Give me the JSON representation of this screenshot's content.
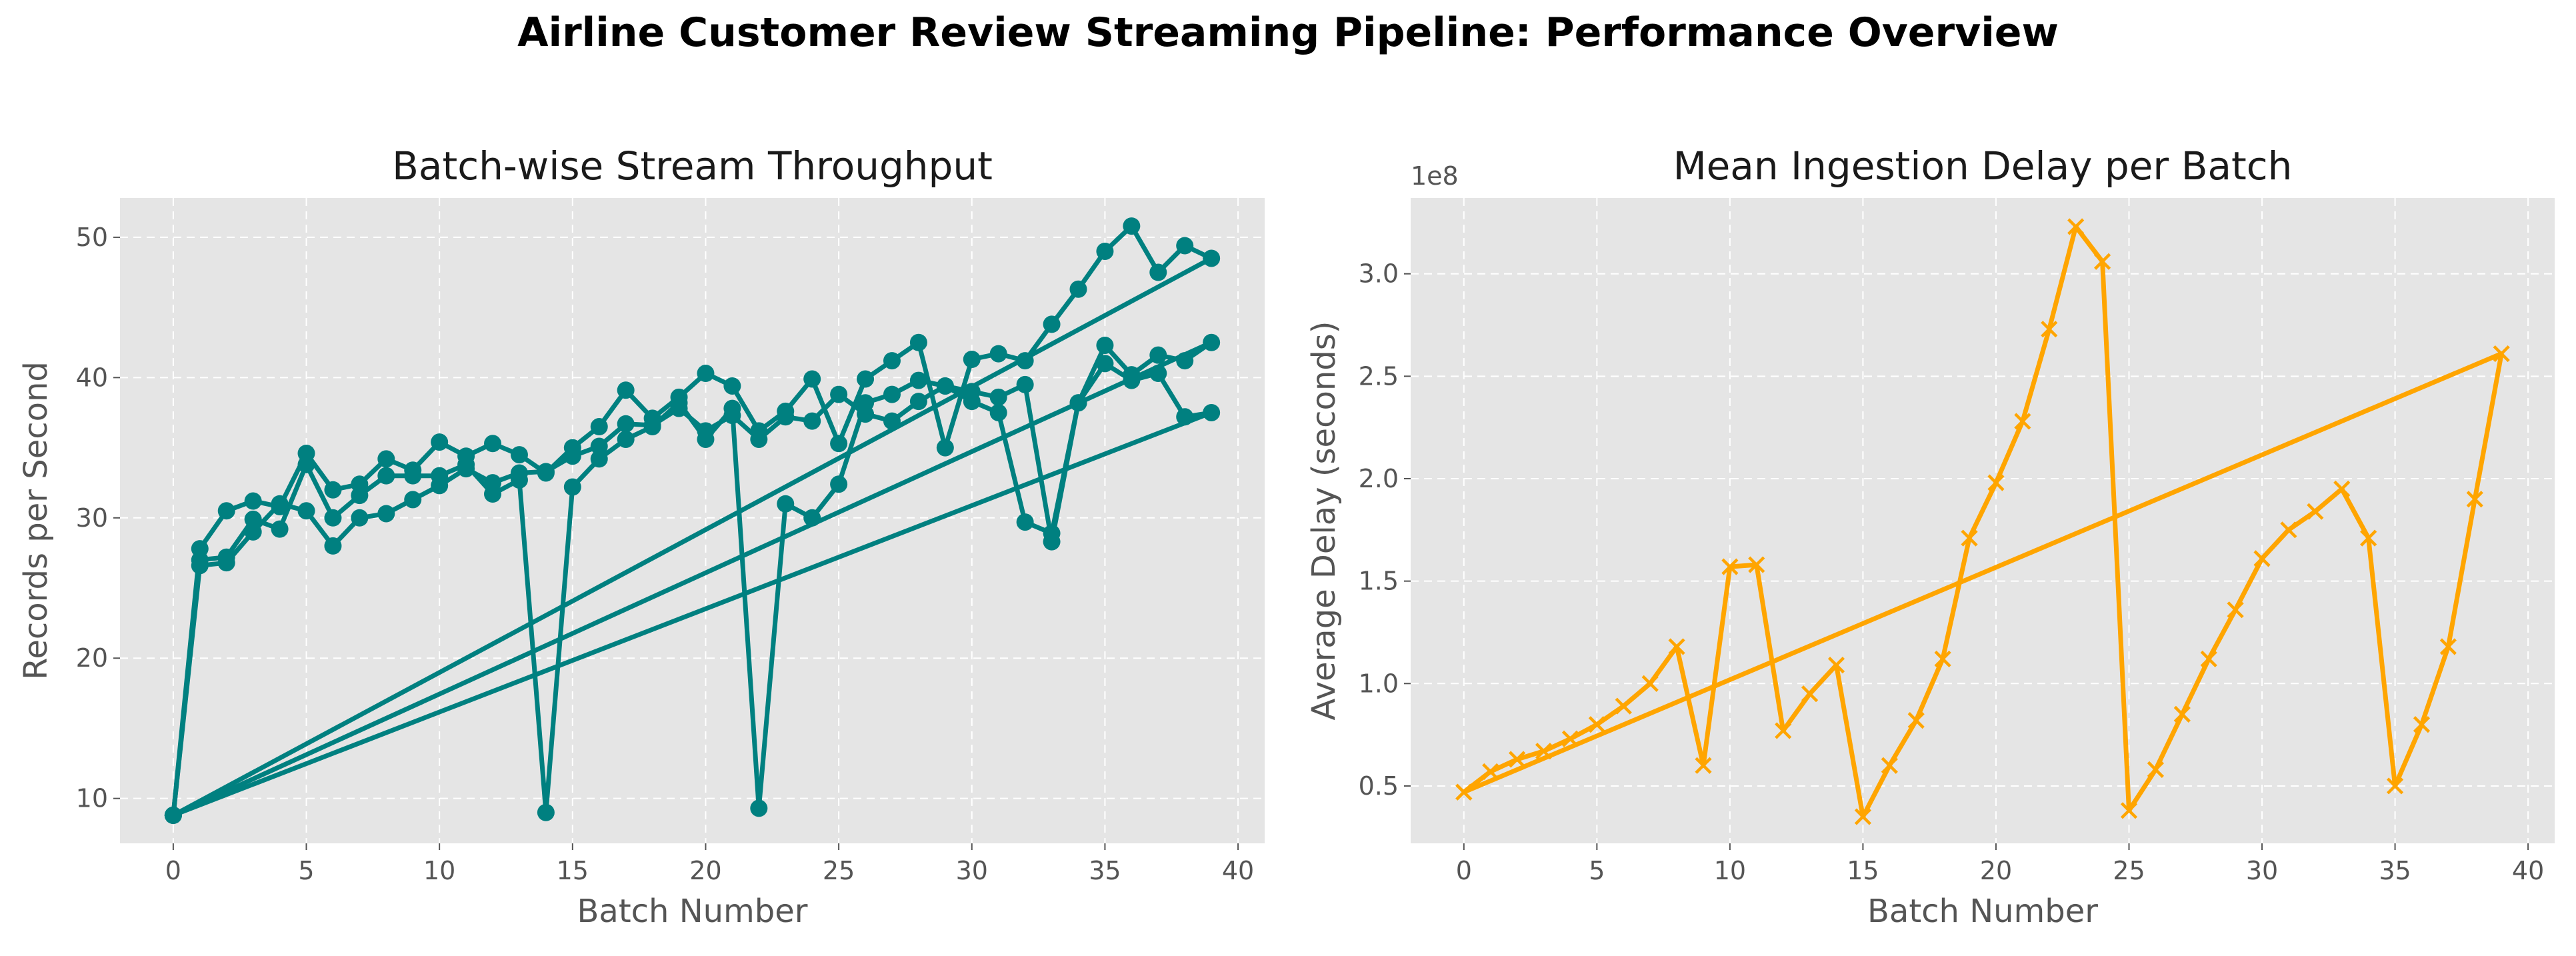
{
  "figure": {
    "suptitle": "Airline Customer Review Streaming Pipeline: Performance Overview"
  },
  "chart_data": [
    {
      "type": "line",
      "title": "Batch-wise Stream Throughput",
      "xlabel": "Batch Number",
      "ylabel": "Records per Second",
      "xlim": [
        -2,
        41
      ],
      "ylim": [
        6.8,
        52.8
      ],
      "xticks": [
        0,
        5,
        10,
        15,
        20,
        25,
        30,
        35,
        40
      ],
      "yticks": [
        10,
        20,
        30,
        40,
        50
      ],
      "grid": true,
      "marker": "circle",
      "color": "#008080",
      "series": [
        {
          "x": [
            0,
            1,
            2,
            3,
            4,
            5,
            6,
            7,
            8,
            9,
            10,
            11,
            12,
            13,
            14,
            15,
            16,
            17,
            18,
            19,
            20,
            21,
            22,
            23,
            24,
            25,
            26,
            27,
            28,
            29,
            30,
            31,
            32,
            33,
            34,
            35,
            36,
            37,
            38,
            39,
            0
          ],
          "values": [
            8.8,
            27.8,
            30.5,
            31.2,
            30.8,
            34.6,
            32.0,
            32.4,
            34.2,
            33.4,
            35.4,
            34.4,
            35.3,
            34.5,
            33.2,
            35.0,
            36.5,
            39.1,
            37.1,
            38.6,
            40.3,
            39.4,
            36.2,
            37.6,
            39.9,
            35.3,
            39.9,
            41.2,
            42.5,
            35.0,
            41.3,
            41.7,
            41.2,
            43.8,
            46.3,
            49.0,
            50.8,
            47.5,
            49.4,
            48.5,
            8.8
          ]
        },
        {
          "x": [
            0,
            1,
            2,
            3,
            4,
            5,
            6,
            7,
            8,
            9,
            10,
            11,
            12,
            13,
            14,
            15,
            16,
            17,
            18,
            19,
            20,
            21,
            22,
            23,
            24,
            25,
            26,
            27,
            28,
            29,
            30,
            31,
            32,
            33,
            34,
            35,
            36,
            37,
            38,
            39,
            0
          ],
          "values": [
            8.8,
            27.0,
            27.2,
            29.9,
            29.2,
            33.8,
            30.0,
            31.6,
            33.0,
            33.0,
            33.0,
            33.8,
            31.7,
            32.7,
            9.0,
            32.2,
            34.2,
            35.6,
            36.5,
            38.2,
            35.6,
            37.8,
            9.3,
            31.0,
            30.0,
            32.4,
            38.2,
            38.8,
            39.8,
            39.4,
            38.3,
            37.5,
            29.7,
            28.9,
            38.2,
            41.0,
            39.8,
            40.3,
            37.2,
            37.5,
            8.8
          ]
        },
        {
          "x": [
            0,
            1,
            2,
            3,
            4,
            5,
            6,
            7,
            8,
            9,
            10,
            11,
            12,
            13,
            14,
            15,
            16,
            17,
            18,
            19,
            20,
            21,
            22,
            23,
            24,
            25,
            26,
            27,
            28,
            29,
            30,
            31,
            32,
            33,
            34,
            35,
            36,
            37,
            38,
            39,
            0
          ],
          "values": [
            8.8,
            26.6,
            26.8,
            29.0,
            31.0,
            30.5,
            28.0,
            30.0,
            30.3,
            31.3,
            32.3,
            33.5,
            32.5,
            33.2,
            33.3,
            34.4,
            35.1,
            36.7,
            36.6,
            37.8,
            36.2,
            37.3,
            35.6,
            37.2,
            36.9,
            38.8,
            37.4,
            36.9,
            38.3,
            39.4,
            39.0,
            38.6,
            39.5,
            28.3,
            38.2,
            42.3,
            40.2,
            41.6,
            41.2,
            42.5,
            8.8
          ]
        }
      ]
    },
    {
      "type": "line",
      "title": "Mean Ingestion Delay per Batch",
      "xlabel": "Batch Number",
      "ylabel": "Average Delay (seconds)",
      "y_offset_label": "1e8",
      "xlim": [
        -2,
        41
      ],
      "ylim": [
        0.22,
        3.37
      ],
      "xticks": [
        0,
        5,
        10,
        15,
        20,
        25,
        30,
        35,
        40
      ],
      "ytick_labels": [
        "0.5",
        "1.0",
        "1.5",
        "2.0",
        "2.5",
        "3.0"
      ],
      "grid": true,
      "marker": "x",
      "color": "#FFA500",
      "series": [
        {
          "x": [
            0,
            1,
            2,
            3,
            4,
            5,
            6,
            7,
            8,
            9,
            10,
            11,
            12,
            13,
            14,
            15,
            16,
            17,
            18,
            19,
            20,
            21,
            22,
            23,
            24,
            25,
            26,
            27,
            28,
            29,
            30,
            31,
            32,
            33,
            34,
            35,
            36,
            37,
            38,
            39,
            0
          ],
          "values": [
            0.47,
            0.57,
            0.63,
            0.67,
            0.73,
            0.8,
            0.89,
            1.0,
            1.18,
            0.6,
            1.57,
            1.58,
            0.77,
            0.95,
            1.09,
            0.35,
            0.6,
            0.82,
            1.12,
            1.71,
            1.98,
            2.28,
            2.73,
            3.23,
            3.06,
            0.38,
            0.58,
            0.85,
            1.12,
            1.36,
            1.61,
            1.75,
            1.84,
            1.95,
            1.71,
            0.5,
            0.8,
            1.18,
            1.9,
            2.61,
            0.47
          ]
        }
      ]
    }
  ]
}
